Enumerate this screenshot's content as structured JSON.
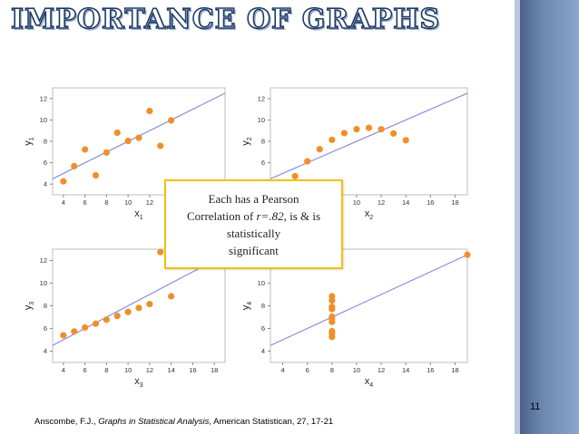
{
  "slide": {
    "title": "IMPORTANCE OF GRAPHS",
    "page_number": "11",
    "callout": {
      "line1": "Each has a Pearson",
      "line2_a": "Correlation of ",
      "line2_r": "r=.82",
      "line2_b": ", is  & is",
      "line3": "statistically",
      "line4": "significant"
    },
    "citation": {
      "authors": "Anscombe, F.J., ",
      "work": "Graphs in Statistical Analysis",
      "rest": ", American Statistican, 27, 17-21"
    },
    "colors": {
      "points": "#f08f2a",
      "fit_line": "#8a8ee0",
      "title_stroke": "#1f3b66",
      "callout_border": "#f2c200"
    }
  },
  "chart_data": [
    {
      "type": "scatter",
      "xlabel": "x",
      "xsub": "1",
      "ylabel": "y",
      "ysub": "1",
      "xlim": [
        3,
        19
      ],
      "ylim": [
        3,
        13
      ],
      "xticks": [
        4,
        6,
        8,
        10,
        12,
        14,
        16,
        18
      ],
      "yticks": [
        4,
        6,
        8,
        10,
        12
      ],
      "fit": {
        "intercept": 3.0,
        "slope": 0.5
      },
      "points": [
        [
          10,
          8.04
        ],
        [
          8,
          6.95
        ],
        [
          13,
          7.58
        ],
        [
          9,
          8.81
        ],
        [
          11,
          8.33
        ],
        [
          14,
          9.96
        ],
        [
          6,
          7.24
        ],
        [
          4,
          4.26
        ],
        [
          12,
          10.84
        ],
        [
          7,
          4.82
        ],
        [
          5,
          5.68
        ]
      ]
    },
    {
      "type": "scatter",
      "xlabel": "x",
      "xsub": "2",
      "ylabel": "y",
      "ysub": "2",
      "xlim": [
        3,
        19
      ],
      "ylim": [
        3,
        13
      ],
      "xticks": [
        4,
        6,
        8,
        10,
        12,
        14,
        16,
        18
      ],
      "yticks": [
        4,
        6,
        8,
        10,
        12
      ],
      "fit": {
        "intercept": 3.0,
        "slope": 0.5
      },
      "points": [
        [
          10,
          9.14
        ],
        [
          8,
          8.14
        ],
        [
          13,
          8.74
        ],
        [
          9,
          8.77
        ],
        [
          11,
          9.26
        ],
        [
          14,
          8.1
        ],
        [
          6,
          6.13
        ],
        [
          4,
          3.1
        ],
        [
          12,
          9.13
        ],
        [
          7,
          7.26
        ],
        [
          5,
          4.74
        ]
      ]
    },
    {
      "type": "scatter",
      "xlabel": "x",
      "xsub": "3",
      "ylabel": "y",
      "ysub": "3",
      "xlim": [
        3,
        19
      ],
      "ylim": [
        3,
        13
      ],
      "xticks": [
        4,
        6,
        8,
        10,
        12,
        14,
        16,
        18
      ],
      "yticks": [
        4,
        6,
        8,
        10,
        12
      ],
      "fit": {
        "intercept": 3.0,
        "slope": 0.5
      },
      "points": [
        [
          10,
          7.46
        ],
        [
          8,
          6.77
        ],
        [
          13,
          12.74
        ],
        [
          9,
          7.11
        ],
        [
          11,
          7.81
        ],
        [
          14,
          8.84
        ],
        [
          6,
          6.08
        ],
        [
          4,
          5.39
        ],
        [
          12,
          8.15
        ],
        [
          7,
          6.42
        ],
        [
          5,
          5.73
        ]
      ]
    },
    {
      "type": "scatter",
      "xlabel": "x",
      "xsub": "4",
      "ylabel": "y",
      "ysub": "4",
      "xlim": [
        3,
        19
      ],
      "ylim": [
        3,
        13
      ],
      "xticks": [
        4,
        6,
        8,
        10,
        12,
        14,
        16,
        18
      ],
      "yticks": [
        4,
        6,
        8,
        10,
        12
      ],
      "fit": {
        "intercept": 3.0,
        "slope": 0.5
      },
      "points": [
        [
          8,
          6.58
        ],
        [
          8,
          5.76
        ],
        [
          8,
          7.71
        ],
        [
          8,
          8.84
        ],
        [
          8,
          8.47
        ],
        [
          8,
          7.04
        ],
        [
          8,
          5.25
        ],
        [
          19,
          12.5
        ],
        [
          8,
          5.56
        ],
        [
          8,
          7.91
        ],
        [
          8,
          6.89
        ]
      ]
    }
  ]
}
